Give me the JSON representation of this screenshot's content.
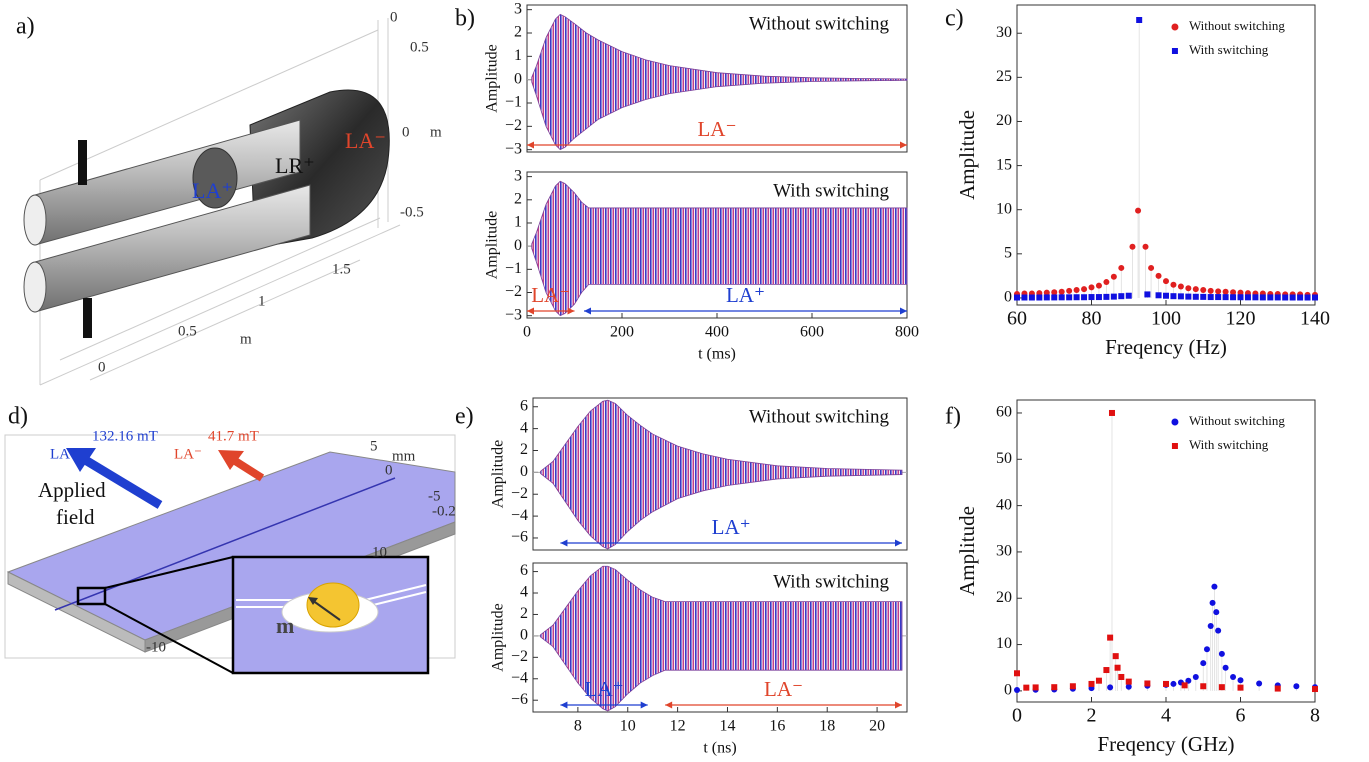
{
  "panel_labels": [
    "a)",
    "b)",
    "c)",
    "d)",
    "e)",
    "f)"
  ],
  "panel_a": {
    "labels": [
      "0",
      "0.5",
      "0",
      "m",
      "-0.5",
      "1.5",
      "1",
      "0.5",
      "m",
      "0"
    ],
    "mode_labels": [
      "LA⁺",
      "LR⁺",
      "LA⁻"
    ]
  },
  "panel_d": {
    "fields": [
      "132.16 mT",
      "LA⁺",
      "41.7 mT",
      "LA⁻"
    ],
    "applied": [
      "Applied",
      "field"
    ],
    "labels": [
      "5",
      "mm",
      "0",
      "-5",
      "-0.2",
      "10",
      "-10"
    ],
    "moment": "m"
  },
  "chart_data": [
    {
      "type": "area",
      "color": "#7a3f9a",
      "annotation": "Without switching",
      "ylabel": "Amplitude",
      "x": [
        10,
        20,
        40,
        60,
        70,
        80,
        100,
        125,
        150,
        200,
        250,
        300,
        400,
        500,
        600,
        700,
        800
      ],
      "upper": [
        0.1,
        0.6,
        1.8,
        2.6,
        2.8,
        2.7,
        2.4,
        2.0,
        1.7,
        1.2,
        0.85,
        0.6,
        0.3,
        0.15,
        0.08,
        0.05,
        0.03
      ],
      "lower": [
        -0.1,
        -0.7,
        -2.0,
        -2.8,
        -3.0,
        -2.9,
        -2.5,
        -2.1,
        -1.7,
        -1.2,
        -0.85,
        -0.6,
        -0.3,
        -0.15,
        -0.08,
        -0.05,
        -0.03
      ],
      "xlim": [
        0,
        800
      ],
      "ylim": [
        -3.1,
        3.2
      ],
      "yticks": [
        {
          "value": -3,
          "label": "−3"
        },
        {
          "value": -2,
          "label": "−2"
        },
        {
          "value": -1,
          "label": "−1"
        },
        0,
        1,
        2,
        3
      ],
      "segments": [
        {
          "label": "LA⁻",
          "start": 0,
          "end": 800,
          "color": "#e0452b"
        }
      ]
    },
    {
      "type": "area",
      "color": "#7a3f9a",
      "annotation": "With switching",
      "ylabel": "Amplitude",
      "xlabel": "t (ms)",
      "x": [
        10,
        20,
        40,
        60,
        70,
        80,
        100,
        115,
        130,
        800
      ],
      "upper": [
        0.1,
        0.6,
        1.8,
        2.6,
        2.8,
        2.7,
        2.3,
        1.9,
        1.65,
        1.65
      ],
      "lower": [
        -0.1,
        -0.7,
        -2.0,
        -2.8,
        -3.0,
        -2.9,
        -2.5,
        -2.0,
        -1.65,
        -1.65
      ],
      "xlim": [
        0,
        800
      ],
      "ylim": [
        -3.1,
        3.2
      ],
      "xticks": [
        0,
        200,
        400,
        600,
        800
      ],
      "yticks": [
        {
          "value": -3,
          "label": "−3"
        },
        {
          "value": -2,
          "label": "−2"
        },
        {
          "value": -1,
          "label": "−1"
        },
        0,
        1,
        2,
        3
      ],
      "segments": [
        {
          "label": "LA⁻",
          "start": 0,
          "end": 100,
          "color": "#e0452b"
        },
        {
          "label": "LA⁺",
          "start": 120,
          "end": 800,
          "color": "#1f3fd0"
        }
      ]
    },
    {
      "type": "scatter",
      "xlabel": "Freqency (Hz)",
      "ylabel": "Amplitude",
      "legend": "upper right",
      "stems": true,
      "xlim": [
        60,
        140
      ],
      "ylim": [
        -0.8,
        33.2
      ],
      "xticks": [
        60,
        80,
        100,
        120,
        140
      ],
      "yticks": [
        0,
        5,
        10,
        15,
        20,
        25,
        30
      ],
      "series": [
        {
          "name": "Without switching",
          "color": "#e02020",
          "marker": "circle",
          "x": [
            60,
            62,
            64,
            66,
            68,
            70,
            72,
            74,
            76,
            78,
            80,
            82,
            84,
            86,
            88,
            91,
            92.5,
            94.5,
            96,
            98,
            100,
            102,
            104,
            106,
            108,
            110,
            112,
            114,
            116,
            118,
            120,
            122,
            124,
            126,
            128,
            130,
            132,
            134,
            136,
            138,
            140
          ],
          "values": [
            0.45,
            0.5,
            0.5,
            0.55,
            0.6,
            0.65,
            0.7,
            0.8,
            0.9,
            1.0,
            1.2,
            1.4,
            1.8,
            2.4,
            3.4,
            5.8,
            9.9,
            5.8,
            3.4,
            2.5,
            1.9,
            1.5,
            1.3,
            1.1,
            1.0,
            0.9,
            0.8,
            0.75,
            0.7,
            0.65,
            0.6,
            0.55,
            0.5,
            0.5,
            0.45,
            0.45,
            0.4,
            0.4,
            0.4,
            0.35,
            0.35
          ]
        },
        {
          "name": "With switching",
          "color": "#1010e0",
          "marker": "square",
          "x": [
            60,
            62,
            64,
            66,
            68,
            70,
            72,
            74,
            76,
            78,
            80,
            82,
            84,
            86,
            88,
            90,
            92.8,
            95,
            98,
            100,
            102,
            104,
            106,
            108,
            110,
            112,
            114,
            116,
            118,
            120,
            122,
            124,
            126,
            128,
            130,
            132,
            134,
            136,
            138,
            140
          ],
          "values": [
            0.05,
            0.05,
            0.05,
            0.05,
            0.06,
            0.06,
            0.07,
            0.07,
            0.08,
            0.08,
            0.1,
            0.1,
            0.12,
            0.15,
            0.2,
            0.25,
            31.5,
            0.4,
            0.3,
            0.25,
            0.2,
            0.18,
            0.15,
            0.13,
            0.12,
            0.1,
            0.1,
            0.09,
            0.08,
            0.08,
            0.07,
            0.07,
            0.06,
            0.06,
            0.06,
            0.05,
            0.05,
            0.05,
            0.05,
            0.05
          ]
        }
      ]
    },
    {
      "type": "area",
      "color": "#7a3f9a",
      "annotation": "Without switching",
      "ylabel": "Amplitude",
      "x": [
        6.5,
        7,
        7.5,
        8,
        8.5,
        9,
        9.2,
        9.5,
        10,
        10.5,
        11,
        12,
        13,
        14,
        16,
        18,
        21
      ],
      "upper": [
        0.1,
        1.0,
        2.6,
        4.2,
        5.6,
        6.5,
        6.6,
        6.3,
        5.2,
        4.3,
        3.5,
        2.4,
        1.7,
        1.2,
        0.6,
        0.35,
        0.2
      ],
      "lower": [
        -0.1,
        -1.0,
        -2.7,
        -4.4,
        -5.8,
        -6.8,
        -7.0,
        -6.6,
        -5.4,
        -4.4,
        -3.6,
        -2.4,
        -1.7,
        -1.2,
        -0.6,
        -0.35,
        -0.2
      ],
      "xlim": [
        6.2,
        21.2
      ],
      "ylim": [
        -7.1,
        6.8
      ],
      "yticks": [
        {
          "value": -6,
          "label": "−6"
        },
        {
          "value": -4,
          "label": "−4"
        },
        {
          "value": -2,
          "label": "−2"
        },
        0,
        2,
        4,
        6
      ],
      "segments": [
        {
          "label": "LA⁺",
          "start": 7.3,
          "end": 21,
          "color": "#1f3fd0"
        }
      ]
    },
    {
      "type": "area",
      "color": "#7a3f9a",
      "annotation": "With switching",
      "ylabel": "Amplitude",
      "xlabel": "t (ns)",
      "x": [
        6.5,
        7,
        7.5,
        8,
        8.5,
        9,
        9.2,
        9.5,
        10,
        10.5,
        11,
        11.5,
        21
      ],
      "upper": [
        0.1,
        1.0,
        2.6,
        4.2,
        5.6,
        6.5,
        6.5,
        6.2,
        5.2,
        4.3,
        3.6,
        3.2,
        3.2
      ],
      "lower": [
        -0.1,
        -1.0,
        -2.7,
        -4.4,
        -5.8,
        -6.8,
        -7.0,
        -6.6,
        -5.4,
        -4.4,
        -3.7,
        -3.2,
        -3.2
      ],
      "xlim": [
        6.2,
        21.2
      ],
      "ylim": [
        -7.1,
        6.8
      ],
      "xticks": [
        8,
        10,
        12,
        14,
        16,
        18,
        20
      ],
      "yticks": [
        {
          "value": -6,
          "label": "−6"
        },
        {
          "value": -4,
          "label": "−4"
        },
        {
          "value": -2,
          "label": "−2"
        },
        0,
        2,
        4,
        6
      ],
      "segments": [
        {
          "label": "LA⁺",
          "start": 7.3,
          "end": 10.8,
          "color": "#1f3fd0"
        },
        {
          "label": "LA⁻",
          "start": 11.5,
          "end": 21,
          "color": "#e0452b"
        }
      ]
    },
    {
      "type": "scatter",
      "xlabel": "Freqency (GHz)",
      "ylabel": "Amplitude",
      "legend": "upper right",
      "stems": true,
      "xlim": [
        0,
        8
      ],
      "ylim": [
        -2.4,
        62.8
      ],
      "xticks": [
        0,
        2,
        4,
        6,
        8
      ],
      "yticks": [
        0,
        10,
        20,
        30,
        40,
        50,
        60
      ],
      "series": [
        {
          "name": "Without switching",
          "color": "#1010e0",
          "marker": "circle",
          "x": [
            0,
            0.5,
            1,
            1.5,
            2,
            2.5,
            3,
            3.5,
            4,
            4.2,
            4.4,
            4.6,
            4.8,
            5.0,
            5.1,
            5.2,
            5.25,
            5.3,
            5.35,
            5.4,
            5.5,
            5.6,
            5.8,
            6.0,
            6.5,
            7,
            7.5,
            8
          ],
          "values": [
            0.2,
            0.25,
            0.3,
            0.45,
            0.6,
            0.75,
            0.9,
            1.1,
            1.3,
            1.5,
            1.8,
            2.2,
            3.0,
            6.0,
            9.0,
            14.0,
            19.0,
            22.5,
            17.0,
            13.0,
            8.0,
            5.0,
            3.0,
            2.3,
            1.6,
            1.2,
            1.0,
            0.8
          ]
        },
        {
          "name": "With switching",
          "color": "#e01010",
          "marker": "square",
          "x": [
            0,
            0.25,
            0.5,
            1,
            1.5,
            2,
            2.2,
            2.4,
            2.5,
            2.55,
            2.65,
            2.7,
            2.8,
            3,
            3.5,
            4,
            4.5,
            5,
            5.5,
            6,
            7,
            8
          ],
          "values": [
            3.8,
            0.7,
            0.75,
            0.8,
            1.0,
            1.5,
            2.2,
            4.5,
            11.5,
            60,
            7.5,
            5.0,
            3.0,
            2.0,
            1.6,
            1.5,
            1.2,
            1.0,
            0.8,
            0.7,
            0.5,
            0.4
          ]
        }
      ]
    }
  ]
}
